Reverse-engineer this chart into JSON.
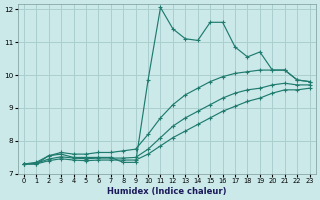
{
  "xlabel": "Humidex (Indice chaleur)",
  "background_color": "#cce9ea",
  "grid_color": "#aacfcf",
  "line_color": "#1e7b6e",
  "xlim": [
    0,
    23
  ],
  "ylim": [
    7,
    12
  ],
  "yticks": [
    7,
    8,
    9,
    10,
    11,
    12
  ],
  "xticks": [
    0,
    1,
    2,
    3,
    4,
    5,
    6,
    7,
    8,
    9,
    10,
    11,
    12,
    13,
    14,
    15,
    16,
    17,
    18,
    19,
    20,
    21,
    22,
    23
  ],
  "series": [
    {
      "x": [
        0,
        1,
        2,
        3,
        4,
        5,
        6,
        7,
        8,
        9,
        10,
        11,
        12,
        13,
        14,
        15,
        16,
        17,
        18,
        19,
        20,
        21,
        22,
        23
      ],
      "y": [
        7.3,
        7.3,
        7.55,
        7.6,
        7.5,
        7.5,
        7.5,
        7.5,
        7.35,
        7.35,
        9.85,
        12.05,
        11.4,
        11.1,
        11.05,
        11.6,
        11.6,
        10.85,
        10.55,
        10.7,
        10.15,
        10.15,
        9.85,
        9.8
      ]
    },
    {
      "x": [
        0,
        1,
        2,
        3,
        4,
        5,
        6,
        7,
        8,
        9,
        10,
        11,
        12,
        13,
        14,
        15,
        16,
        17,
        18,
        19,
        20,
        21,
        22,
        23
      ],
      "y": [
        7.3,
        7.35,
        7.55,
        7.65,
        7.6,
        7.6,
        7.65,
        7.65,
        7.7,
        7.75,
        8.2,
        8.7,
        9.1,
        9.4,
        9.6,
        9.8,
        9.95,
        10.05,
        10.1,
        10.15,
        10.15,
        10.15,
        9.85,
        9.8
      ]
    },
    {
      "x": [
        0,
        1,
        2,
        3,
        4,
        5,
        6,
        7,
        8,
        9,
        10,
        11,
        12,
        13,
        14,
        15,
        16,
        17,
        18,
        19,
        20,
        21,
        22,
        23
      ],
      "y": [
        7.3,
        7.32,
        7.45,
        7.52,
        7.48,
        7.46,
        7.48,
        7.48,
        7.48,
        7.5,
        7.75,
        8.1,
        8.45,
        8.7,
        8.9,
        9.1,
        9.3,
        9.45,
        9.55,
        9.6,
        9.7,
        9.75,
        9.7,
        9.7
      ]
    },
    {
      "x": [
        0,
        1,
        2,
        3,
        4,
        5,
        6,
        7,
        8,
        9,
        10,
        11,
        12,
        13,
        14,
        15,
        16,
        17,
        18,
        19,
        20,
        21,
        22,
        23
      ],
      "y": [
        7.3,
        7.3,
        7.4,
        7.46,
        7.42,
        7.4,
        7.42,
        7.42,
        7.42,
        7.42,
        7.6,
        7.85,
        8.1,
        8.3,
        8.5,
        8.7,
        8.9,
        9.05,
        9.2,
        9.3,
        9.45,
        9.55,
        9.55,
        9.6
      ]
    }
  ]
}
